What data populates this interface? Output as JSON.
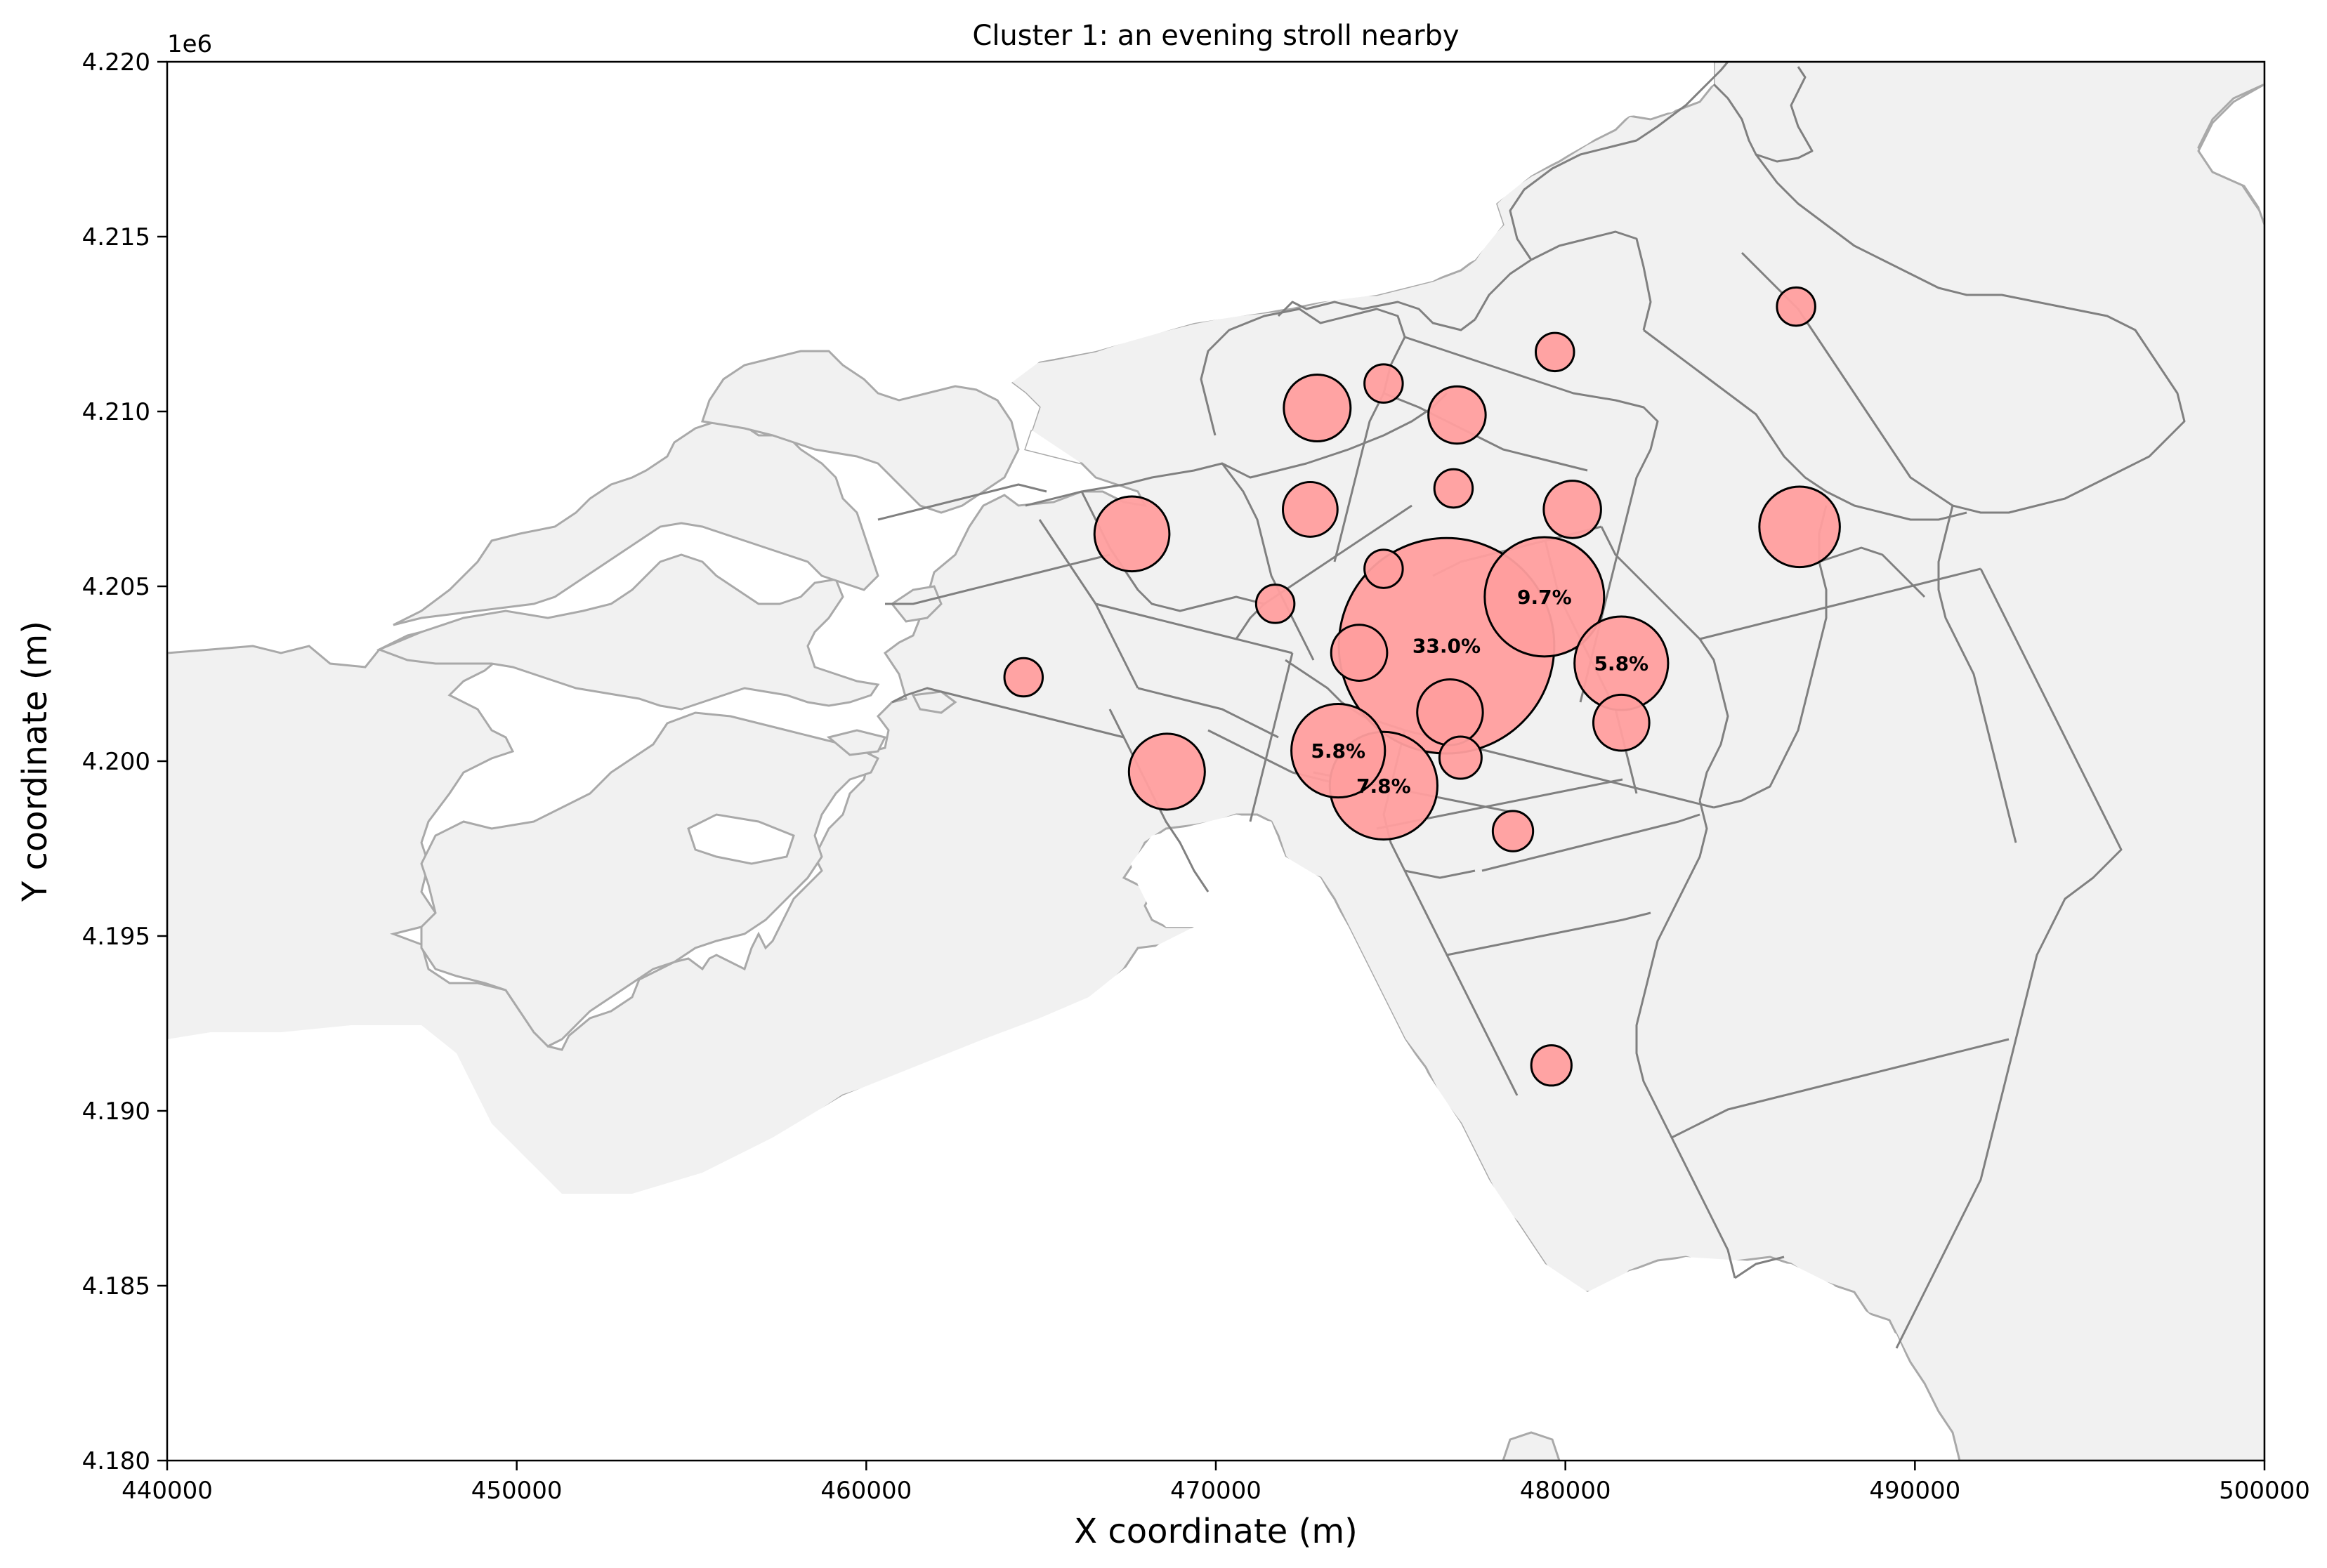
{
  "chart_data": {
    "type": "scatter",
    "title": "Cluster 1: an evening stroll nearby",
    "xlabel": "X coordinate (m)",
    "ylabel": "Y coordinate (m)",
    "xlim": [
      440000,
      500000
    ],
    "ylim": [
      4180000,
      4220000
    ],
    "y_offset_label": "1e6",
    "x_ticks": [
      {
        "value": 440000,
        "label": "440000"
      },
      {
        "value": 450000,
        "label": "450000"
      },
      {
        "value": 460000,
        "label": "460000"
      },
      {
        "value": 470000,
        "label": "470000"
      },
      {
        "value": 480000,
        "label": "480000"
      },
      {
        "value": 490000,
        "label": "490000"
      },
      {
        "value": 500000,
        "label": "500000"
      }
    ],
    "y_ticks": [
      {
        "value": 4180000,
        "label": "4.180"
      },
      {
        "value": 4185000,
        "label": "4.185"
      },
      {
        "value": 4190000,
        "label": "4.190"
      },
      {
        "value": 4195000,
        "label": "4.195"
      },
      {
        "value": 4200000,
        "label": "4.200"
      },
      {
        "value": 4205000,
        "label": "4.205"
      },
      {
        "value": 4210000,
        "label": "4.210"
      },
      {
        "value": 4215000,
        "label": "4.215"
      },
      {
        "value": 4220000,
        "label": "4.220"
      }
    ],
    "bubble_color": "#ff9e9e",
    "land_color": "#f1f1f1",
    "boundary_color": "#808080",
    "points": [
      {
        "x": 476600,
        "y": 4203300,
        "pct": 33.0,
        "label": "33.0%"
      },
      {
        "x": 479400,
        "y": 4204700,
        "pct": 9.7,
        "label": "9.7%"
      },
      {
        "x": 474800,
        "y": 4199300,
        "pct": 7.8,
        "label": "7.8%"
      },
      {
        "x": 473500,
        "y": 4200300,
        "pct": 5.8,
        "label": "5.8%"
      },
      {
        "x": 481600,
        "y": 4202800,
        "pct": 5.8,
        "label": "5.8%"
      },
      {
        "x": 486700,
        "y": 4206700,
        "pct": 4.2,
        "label": ""
      },
      {
        "x": 468600,
        "y": 4199700,
        "pct": 3.7,
        "label": ""
      },
      {
        "x": 467600,
        "y": 4206500,
        "pct": 3.6,
        "label": ""
      },
      {
        "x": 472900,
        "y": 4210100,
        "pct": 2.8,
        "label": ""
      },
      {
        "x": 476700,
        "y": 4201400,
        "pct": 2.7,
        "label": ""
      },
      {
        "x": 476900,
        "y": 4209900,
        "pct": 2.0,
        "label": ""
      },
      {
        "x": 480200,
        "y": 4207200,
        "pct": 2.0,
        "label": ""
      },
      {
        "x": 474100,
        "y": 4203100,
        "pct": 1.9,
        "label": ""
      },
      {
        "x": 481600,
        "y": 4201100,
        "pct": 1.9,
        "label": ""
      },
      {
        "x": 472700,
        "y": 4207200,
        "pct": 1.8,
        "label": ""
      },
      {
        "x": 477000,
        "y": 4200100,
        "pct": 1.0,
        "label": ""
      },
      {
        "x": 478500,
        "y": 4198000,
        "pct": 0.9,
        "label": ""
      },
      {
        "x": 479600,
        "y": 4191300,
        "pct": 0.9,
        "label": ""
      },
      {
        "x": 476800,
        "y": 4207800,
        "pct": 0.8,
        "label": ""
      },
      {
        "x": 474800,
        "y": 4205500,
        "pct": 0.8,
        "label": ""
      },
      {
        "x": 471700,
        "y": 4204500,
        "pct": 0.8,
        "label": ""
      },
      {
        "x": 464500,
        "y": 4202400,
        "pct": 0.8,
        "label": ""
      },
      {
        "x": 479700,
        "y": 4211700,
        "pct": 0.8,
        "label": ""
      },
      {
        "x": 486600,
        "y": 4213000,
        "pct": 0.8,
        "label": ""
      },
      {
        "x": 474800,
        "y": 4210800,
        "pct": 0.8,
        "label": ""
      }
    ]
  }
}
